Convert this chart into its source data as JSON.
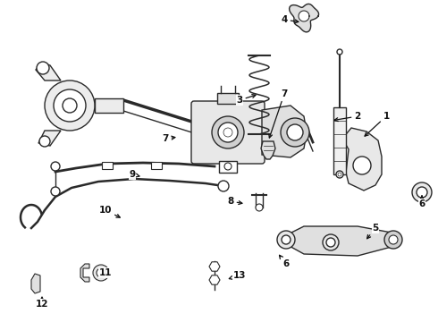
{
  "bg_color": "#ffffff",
  "line_color": "#2a2a2a",
  "label_color": "#111111",
  "figsize": [
    4.9,
    3.6
  ],
  "dpi": 100
}
